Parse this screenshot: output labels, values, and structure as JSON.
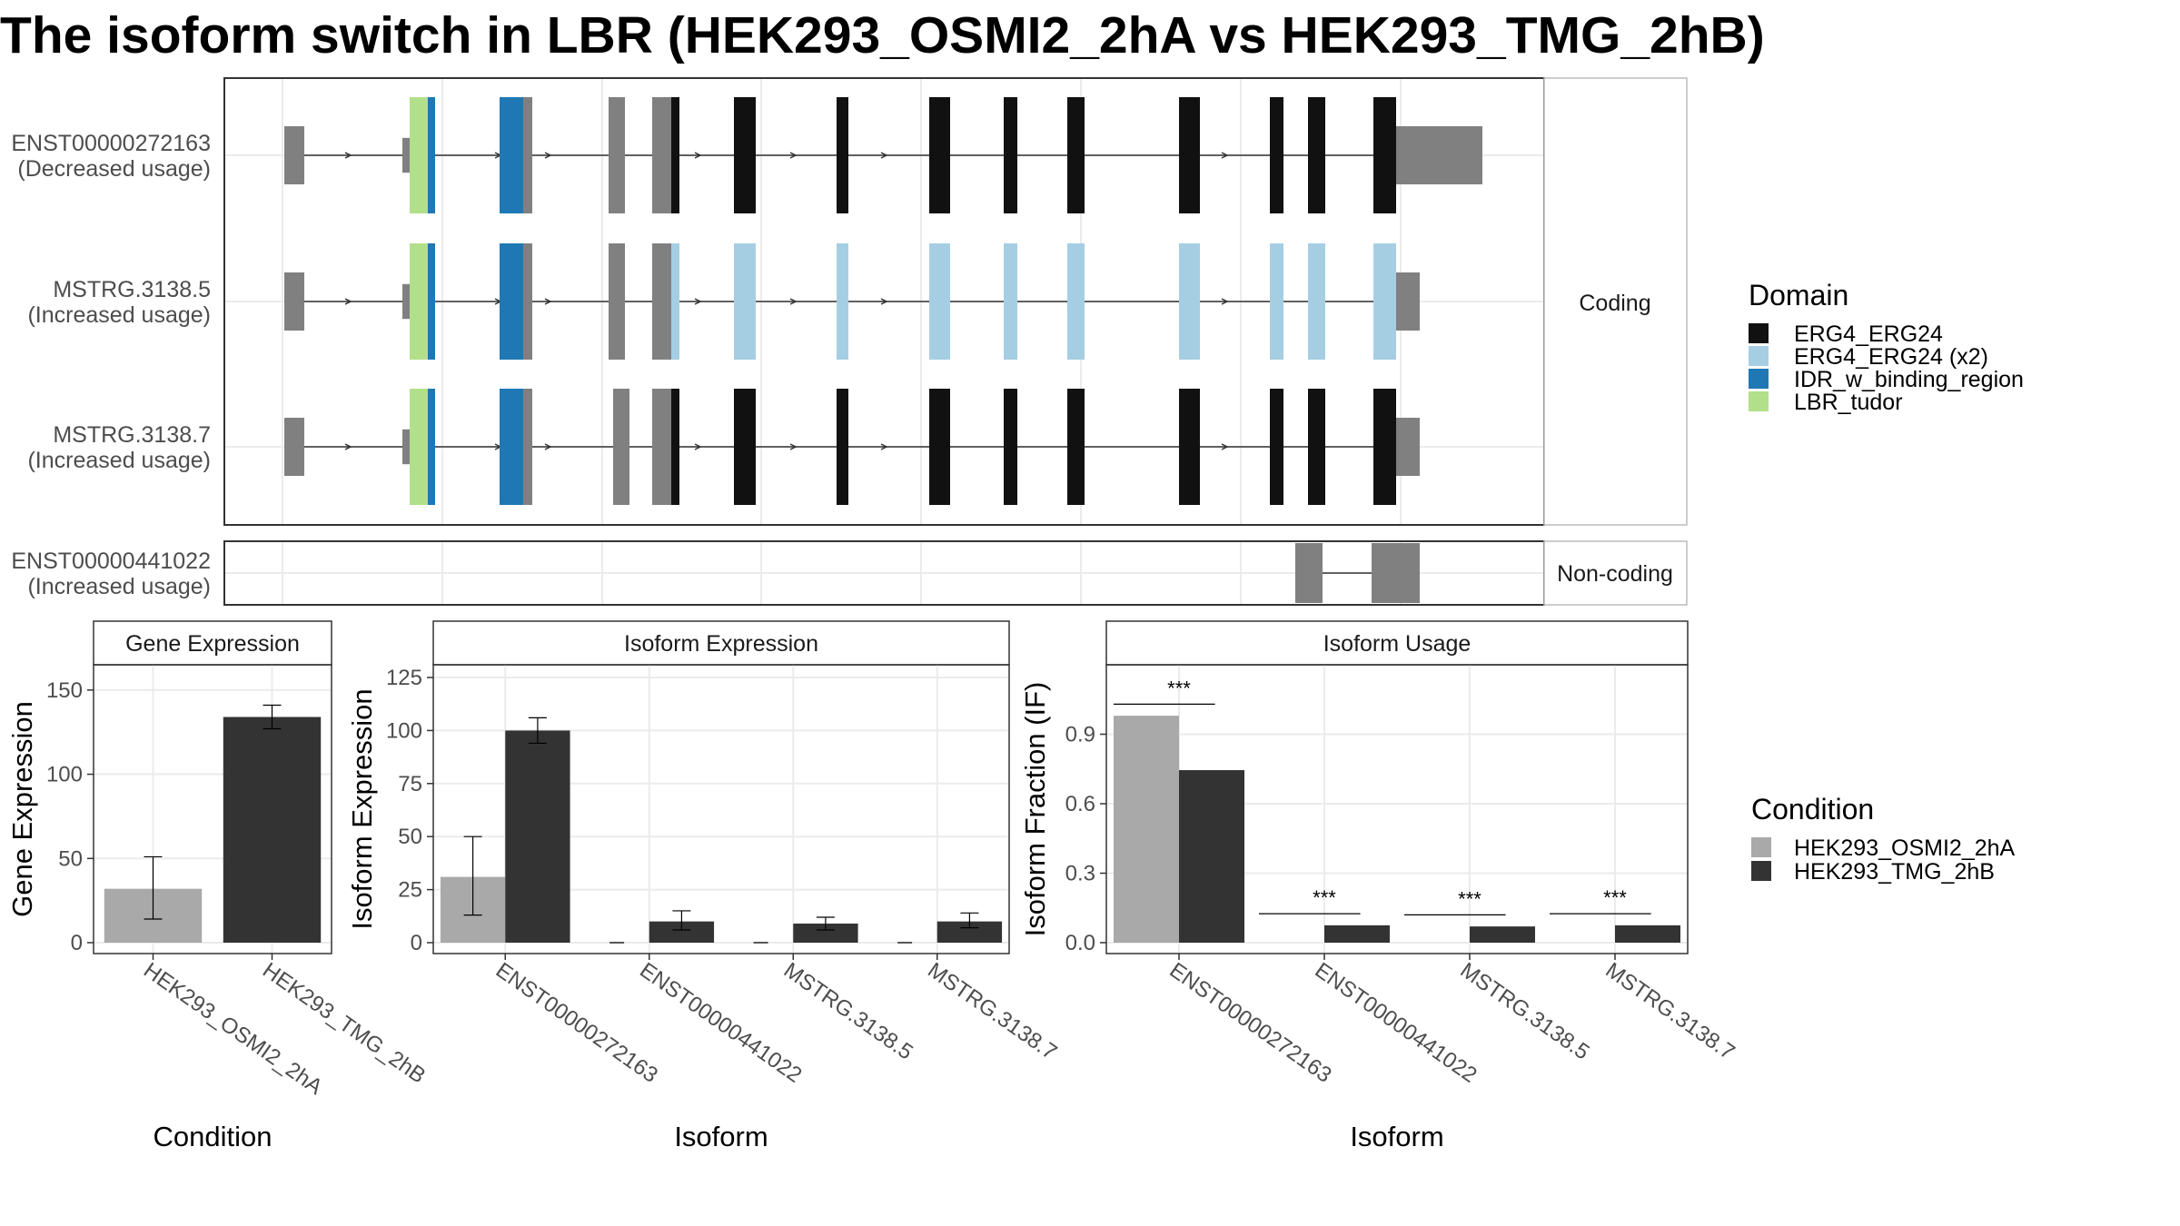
{
  "title": "The isoform switch in LBR (HEK293_OSMI2_2hA vs HEK293_TMG_2hB)",
  "colors": {
    "ERG4_ERG24": "#111111",
    "ERG4_ERG24 (x2)": "#a6cee3",
    "IDR_w_binding_region": "#1f78b4",
    "LBR_tudor": "#b2df8a",
    "utr": "#808080",
    "HEK293_OSMI2_2hA": "#a9a9a9",
    "HEK293_TMG_2hB": "#333333"
  },
  "structure": {
    "facets": [
      "Coding",
      "Non-coding"
    ],
    "transcripts": [
      {
        "line1": "ENST00000272163",
        "line2": "(Decreased usage)"
      },
      {
        "line1": "MSTRG.3138.5",
        "line2": "(Increased usage)"
      },
      {
        "line1": "MSTRG.3138.7",
        "line2": "(Increased usage)"
      },
      {
        "line1": "ENST00000441022",
        "line2": "(Increased usage)"
      }
    ],
    "legend_title": "Domain",
    "domains": [
      "ERG4_ERG24",
      "ERG4_ERG24 (x2)",
      "IDR_w_binding_region",
      "LBR_tudor"
    ]
  },
  "condition_legend": {
    "title": "Condition",
    "items": [
      "HEK293_OSMI2_2hA",
      "HEK293_TMG_2hB"
    ]
  },
  "chart_data": [
    {
      "type": "bar",
      "title": "Gene Expression",
      "xlabel": "Condition",
      "ylabel": "Gene Expression",
      "categories": [
        "HEK293_OSMI2_2hA",
        "HEK293_TMG_2hB"
      ],
      "values": [
        32,
        134
      ],
      "errors": [
        [
          14,
          51
        ],
        [
          127,
          141
        ]
      ],
      "ylim": [
        0,
        165
      ],
      "yticks": [
        0,
        50,
        100,
        150
      ]
    },
    {
      "type": "bar",
      "title": "Isoform Expression",
      "xlabel": "Isoform",
      "ylabel": "Isoform Expression",
      "categories": [
        "ENST00000272163",
        "ENST00000441022",
        "MSTRG.3138.5",
        "MSTRG.3138.7"
      ],
      "series": [
        {
          "name": "HEK293_OSMI2_2hA",
          "values": [
            31,
            0,
            0,
            0
          ],
          "errors": [
            [
              13,
              50
            ],
            [
              0,
              0
            ],
            [
              0,
              0
            ],
            [
              0,
              0
            ]
          ]
        },
        {
          "name": "HEK293_TMG_2hB",
          "values": [
            100,
            10,
            9,
            10
          ],
          "errors": [
            [
              94,
              106
            ],
            [
              6,
              15
            ],
            [
              6,
              12
            ],
            [
              7,
              14
            ]
          ]
        }
      ],
      "ylim": [
        0,
        131
      ],
      "yticks": [
        0,
        25,
        50,
        75,
        100,
        125
      ]
    },
    {
      "type": "bar",
      "title": "Isoform Usage",
      "xlabel": "Isoform",
      "ylabel": "Isoform Fraction (IF)",
      "categories": [
        "ENST00000272163",
        "ENST00000441022",
        "MSTRG.3138.5",
        "MSTRG.3138.7"
      ],
      "series": [
        {
          "name": "HEK293_OSMI2_2hA",
          "values": [
            0.98,
            0,
            0,
            0
          ]
        },
        {
          "name": "HEK293_TMG_2hB",
          "values": [
            0.745,
            0.075,
            0.07,
            0.075
          ]
        }
      ],
      "significance": [
        "***",
        "***",
        "***",
        "***"
      ],
      "ylim": [
        0,
        1.2
      ],
      "yticks": [
        "0.0",
        "0.3",
        "0.6",
        "0.9"
      ]
    }
  ]
}
